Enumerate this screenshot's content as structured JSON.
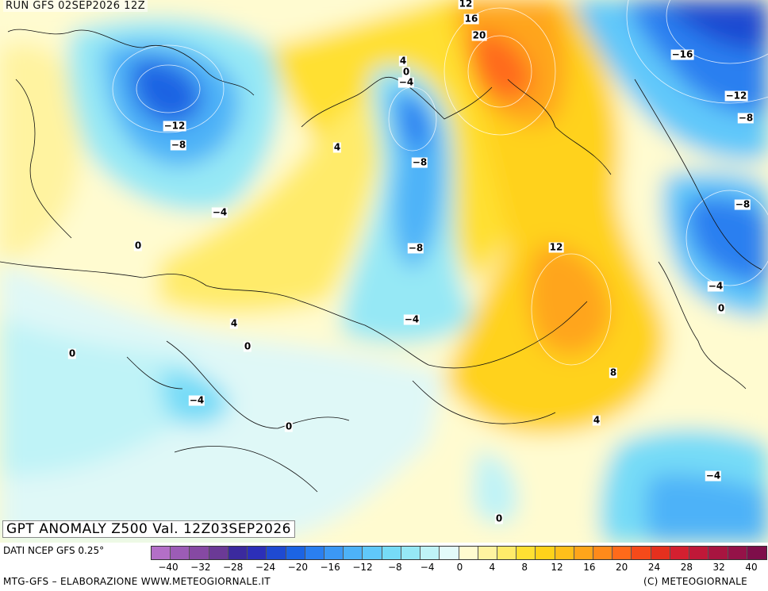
{
  "header": {
    "run": "RUN GFS 02SEP2026 12Z"
  },
  "title": "GPT ANOMALY Z500 Val. 12Z03SEP2026",
  "footer": {
    "data_source": "DATI NCEP GFS 0.25°",
    "credit_left": "MTG-GFS – ELABORAZIONE WWW.METEOGIORNALE.IT",
    "credit_right": "(C) METEOGIORNALE"
  },
  "colorbar": {
    "colors": [
      "#b36fc7",
      "#9c5cb6",
      "#8649a3",
      "#6b3a96",
      "#3b2a9e",
      "#2c2fb8",
      "#1f4ad1",
      "#1c64e3",
      "#2a7ff0",
      "#3b98f5",
      "#4db2f8",
      "#60c8fa",
      "#76dbf7",
      "#96e8f5",
      "#bff3f7",
      "#e3fbfa",
      "#fffbd0",
      "#fff3a0",
      "#ffeb6a",
      "#ffe033",
      "#ffd21a",
      "#ffbf1a",
      "#ffa51a",
      "#ff8a1a",
      "#ff6a1a",
      "#f54a1a",
      "#e5301e",
      "#d42030",
      "#c01838",
      "#a81540",
      "#951248",
      "#7e0e4a"
    ],
    "tick_labels": [
      "−40",
      "−32",
      "−28",
      "−24",
      "−20",
      "−16",
      "−12",
      "−8",
      "−4",
      "0",
      "4",
      "8",
      "12",
      "16",
      "20",
      "24",
      "28",
      "32",
      "40"
    ]
  },
  "contour_labels": [
    {
      "text": "12"
    },
    {
      "text": "16"
    },
    {
      "text": "20"
    },
    {
      "text": "4"
    },
    {
      "text": "0"
    },
    {
      "text": "−4"
    },
    {
      "text": "−16"
    },
    {
      "text": "−12"
    },
    {
      "text": "−8"
    },
    {
      "text": "−12"
    },
    {
      "text": "−8"
    },
    {
      "text": "4"
    },
    {
      "text": "−8"
    },
    {
      "text": "−4"
    },
    {
      "text": "0"
    },
    {
      "text": "−8"
    },
    {
      "text": "12"
    },
    {
      "text": "−8"
    },
    {
      "text": "−4"
    },
    {
      "text": "0"
    },
    {
      "text": "4"
    },
    {
      "text": "−4"
    },
    {
      "text": "0"
    },
    {
      "text": "0"
    },
    {
      "text": "8"
    },
    {
      "text": "−4"
    },
    {
      "text": "4"
    },
    {
      "text": "0"
    },
    {
      "text": "−4"
    },
    {
      "text": "0"
    }
  ]
}
